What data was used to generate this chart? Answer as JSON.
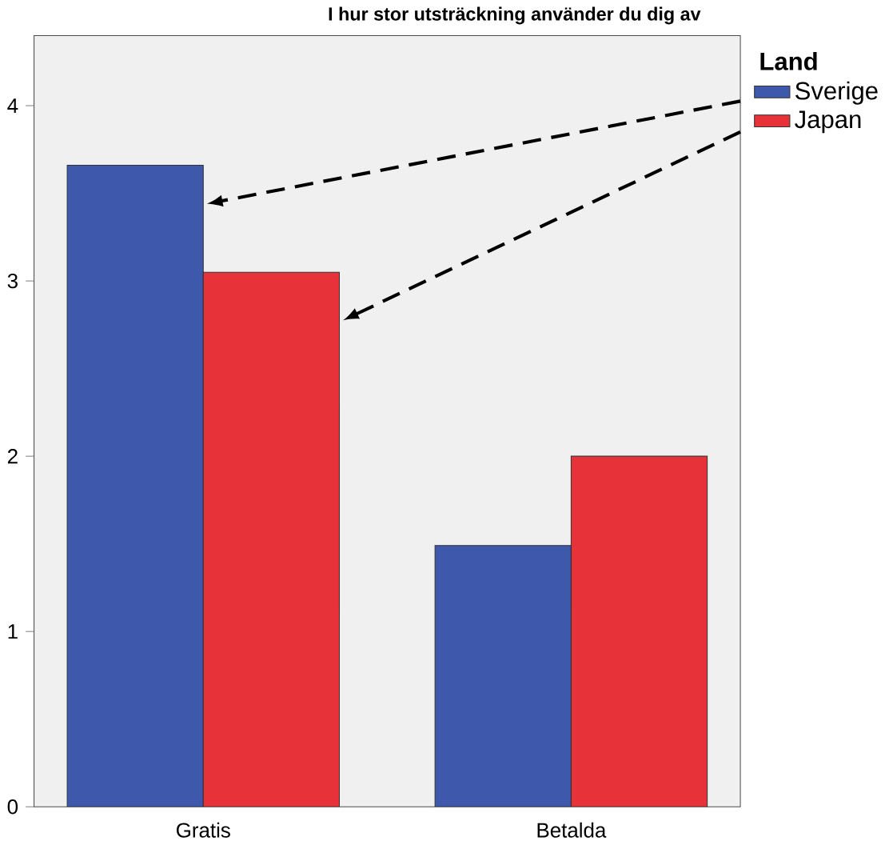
{
  "chart_data": {
    "type": "bar",
    "title": "I hur stor utsträckning använder du dig av",
    "legend_title": "Land",
    "categories": [
      "Gratis",
      "Betalda"
    ],
    "series": [
      {
        "name": "Sverige",
        "color": "#3e58ac",
        "values": [
          3.66,
          1.49
        ]
      },
      {
        "name": "Japan",
        "color": "#e8323a",
        "values": [
          3.05,
          2.0
        ]
      }
    ],
    "ylim": [
      0,
      4.4
    ],
    "yticks": [
      0,
      1,
      2,
      3,
      4
    ],
    "legend": "top right",
    "grid": false
  }
}
